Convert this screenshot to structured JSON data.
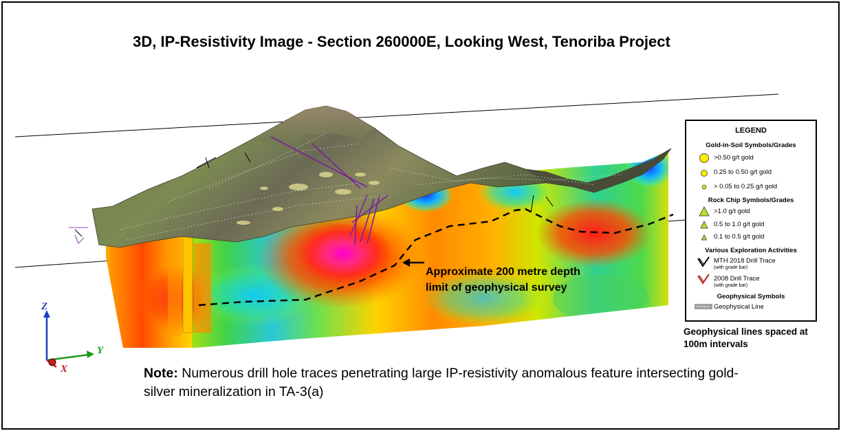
{
  "title": "3D, IP-Resistivity Image - Section 260000E, Looking West, Tenoriba Project",
  "annotation": {
    "line1": "Approximate 200 metre depth",
    "line2": "limit of geophysical survey"
  },
  "note": {
    "bold": "Note:",
    "text": " Numerous drill hole traces penetrating large IP-resistivity anomalous feature intersecting gold-silver mineralization in TA-3(a)"
  },
  "geophysical_note": {
    "line1": "Geophysical lines spaced at",
    "line2": "100m intervals"
  },
  "axes": {
    "z": "Z",
    "y": "Y",
    "x": "X"
  },
  "legend": {
    "title": "LEGEND",
    "soil_header": "Gold-in-Soil Symbols/Grades",
    "soil": [
      ">0.50 g/t gold",
      "0.25 to 0.50 g/t gold",
      "> 0.05 to 0.25 g/t gold"
    ],
    "rock_header": "Rock Chip Symbols/Grades",
    "rock": [
      ">1.0  g/t gold",
      "0.5 to 1.0 g/t gold",
      "0.1 to 0.5 g/t gold"
    ],
    "activities_header": "Various Exploration Activities",
    "mth_label": "MTH 2018 Drill Trace",
    "mth_sub": "(with grade bar)",
    "drill2008_label": "2008 Drill Trace",
    "drill2008_sub": "(with grade bar)",
    "geo_header": "Geophysical Symbols",
    "geo_line": "Geophysical Line"
  },
  "colors": {
    "soil_symbol": "#ffee00",
    "rock_symbol": "#b5e61d",
    "mth_trace": "#000000",
    "drill2008_trace": "#b22222",
    "geophysical_line": "#a0a0a0",
    "drill_holes": "#7a1fa2",
    "z_axis": "#1a3fc6",
    "y_axis": "#1a9a1a",
    "x_axis": "#c81e1e"
  }
}
